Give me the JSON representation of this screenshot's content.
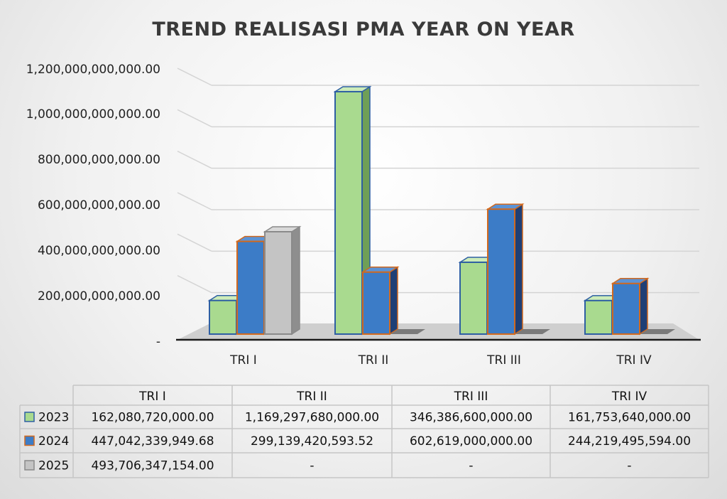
{
  "chart_data": {
    "type": "bar",
    "title": "TREND REALISASI PMA YEAR ON YEAR",
    "categories": [
      "TRI I",
      "TRI II",
      "TRI III",
      "TRI IV"
    ],
    "ylim": [
      0,
      1200000000000
    ],
    "yticks": [
      0,
      200000000000,
      400000000000,
      600000000000,
      800000000000,
      1000000000000,
      1200000000000
    ],
    "ytick_labels": [
      "-",
      "200,000,000,000.00",
      "400,000,000,000.00",
      "600,000,000,000.00",
      "800,000,000,000.00",
      "1,000,000,000,000.00",
      "1,200,000,000,000.00"
    ],
    "grid": true,
    "three_d": true,
    "legend": "data-table-below",
    "series": [
      {
        "name": "2023",
        "values": [
          162080720000.0,
          1169297680000.0,
          346386600000.0,
          161753640000.0
        ],
        "labels": [
          "162,080,720,000.00",
          "1,169,297,680,000.00",
          "346,386,600,000.00",
          "161,753,640,000.00"
        ],
        "color": "#a9da8f",
        "side": "#6f9f57",
        "top": "#cdecb9",
        "border": "#2e5fa3"
      },
      {
        "name": "2024",
        "values": [
          447042339949.68,
          299139420593.52,
          602619000000.0,
          244219495594.0
        ],
        "labels": [
          "447,042,339,949.68",
          "299,139,420,593.52",
          "602,619,000,000.00",
          "244,219,495,594.00"
        ],
        "color": "#3c7cc7",
        "side": "#1f3f75",
        "top": "#5b93d6",
        "border": "#d2691e"
      },
      {
        "name": "2025",
        "values": [
          493706347154.0,
          null,
          null,
          null
        ],
        "labels": [
          "493,706,347,154.00",
          "-",
          "-",
          "-"
        ],
        "color": "#c4c4c4",
        "side": "#8e8e8e",
        "top": "#d9d9d9",
        "border": "#8a8a8a"
      }
    ]
  }
}
